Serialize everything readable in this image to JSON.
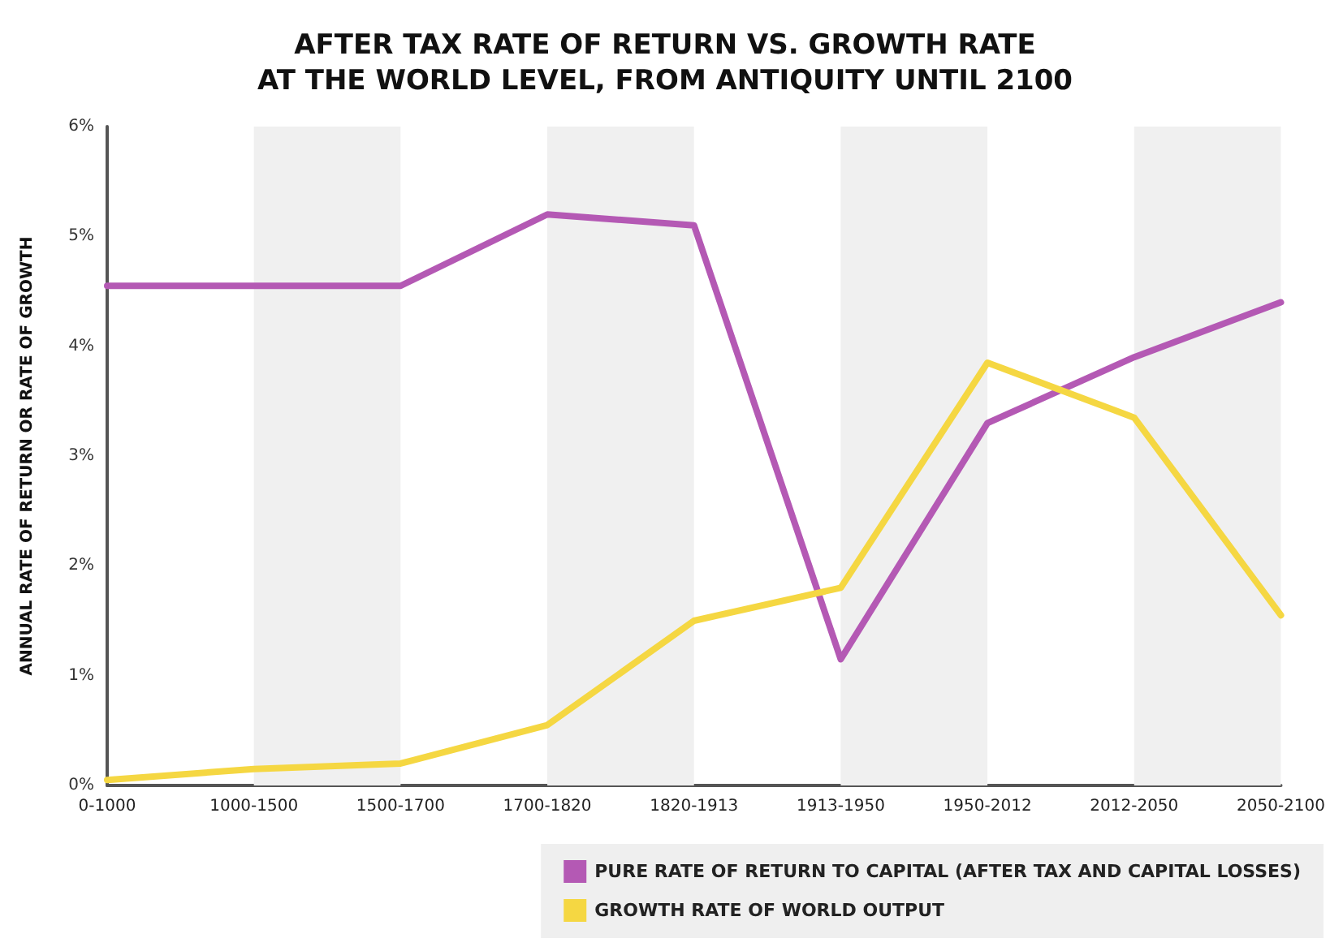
{
  "chart_data": {
    "type": "line",
    "title": "AFTER TAX RATE OF RETURN VS. GROWTH RATE\nAT THE WORLD LEVEL, FROM ANTIQUITY UNTIL 2100",
    "ylabel": "ANNUAL RATE OF RETURN OR RATE OF GROWTH",
    "categories": [
      "0-1000",
      "1000-1500",
      "1500-1700",
      "1700-1820",
      "1820-1913",
      "1913-1950",
      "1950-2012",
      "2012-2050",
      "2050-2100"
    ],
    "series": [
      {
        "name": "PURE RATE OF RETURN TO CAPITAL (AFTER TAX AND CAPITAL LOSSES)",
        "color": "#b459b4",
        "values": [
          4.55,
          4.55,
          4.55,
          5.2,
          5.1,
          1.15,
          3.3,
          3.9,
          4.4
        ]
      },
      {
        "name": "GROWTH RATE OF WORLD OUTPUT",
        "color": "#f5d742",
        "values": [
          0.05,
          0.15,
          0.2,
          0.55,
          1.5,
          1.8,
          3.85,
          3.35,
          1.55
        ]
      }
    ],
    "ylim": [
      0,
      6
    ],
    "yticks": [
      {
        "value": 0,
        "label": "0%"
      },
      {
        "value": 1,
        "label": "1%"
      },
      {
        "value": 2,
        "label": "2%"
      },
      {
        "value": 3,
        "label": "3%"
      },
      {
        "value": 4,
        "label": "4%"
      },
      {
        "value": 5,
        "label": "5%"
      },
      {
        "value": 6,
        "label": "6%"
      }
    ],
    "bands": [
      {
        "axis": "x",
        "from": "1000-1500",
        "to": "1500-1700",
        "color": "#f0f0f0"
      },
      {
        "axis": "x",
        "from": "1700-1820",
        "to": "1820-1913",
        "color": "#f0f0f0"
      },
      {
        "axis": "x",
        "from": "1913-1950",
        "to": "1950-2012",
        "color": "#f0f0f0"
      },
      {
        "axis": "x",
        "from": "2012-2050",
        "to": "2050-2100",
        "color": "#f0f0f0"
      }
    ],
    "grid": false,
    "legend": "bottom right",
    "marker": "none",
    "line_style": "solid"
  }
}
